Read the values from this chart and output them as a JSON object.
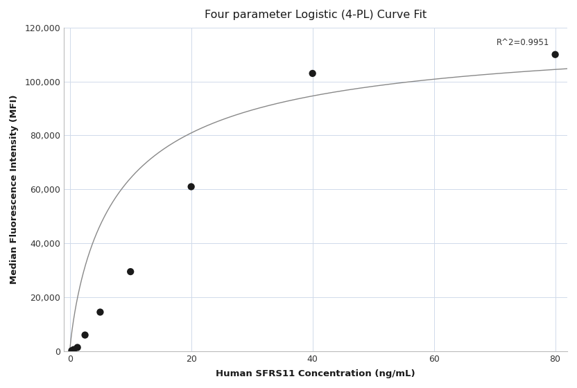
{
  "title": "Four parameter Logistic (4-PL) Curve Fit",
  "xlabel": "Human SFRS11 Concentration (ng/mL)",
  "ylabel": "Median Fluorescence Intensity (MFI)",
  "scatter_x": [
    0.31,
    0.63,
    1.25,
    2.5,
    5.0,
    10.0,
    20.0,
    40.0,
    80.0
  ],
  "scatter_y": [
    200,
    600,
    1400,
    6000,
    14500,
    29500,
    61000,
    103000,
    110000
  ],
  "xlim": [
    -1,
    82
  ],
  "ylim": [
    0,
    120000
  ],
  "yticks": [
    0,
    20000,
    40000,
    60000,
    80000,
    100000,
    120000
  ],
  "xticks": [
    0,
    20,
    40,
    60,
    80
  ],
  "r_squared": "R^2=0.9951",
  "curve_color": "#888888",
  "scatter_color": "#1a1a1a",
  "grid_color": "#d0daea",
  "background_color": "#ffffff",
  "4pl_A": 50,
  "4pl_D": 120000,
  "4pl_C": 8.5,
  "4pl_B": 0.85
}
